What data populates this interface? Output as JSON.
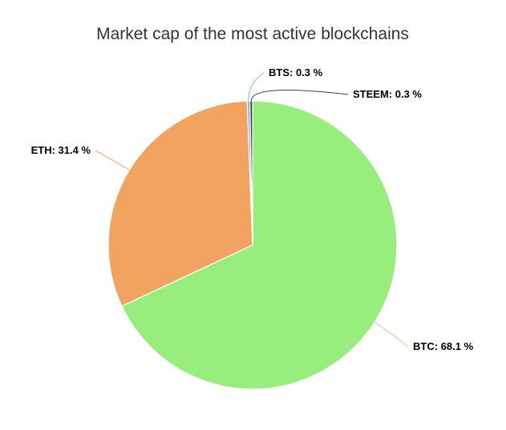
{
  "chart_data": {
    "type": "pie",
    "title": "Market cap of the most active blockchains",
    "slices": [
      {
        "name": "BTC",
        "value": 68.1,
        "label": "BTC: 68.1 %",
        "color": "#98ee7c"
      },
      {
        "name": "ETH",
        "value": 31.4,
        "label": "ETH: 31.4 %",
        "color": "#f2a35f"
      },
      {
        "name": "BTS",
        "value": 0.3,
        "label": "BTS: 0.3 %",
        "color": "#7cb5ec"
      },
      {
        "name": "STEEM",
        "value": 0.3,
        "label": "STEEM: 0.3 %",
        "color": "#434348"
      }
    ]
  }
}
